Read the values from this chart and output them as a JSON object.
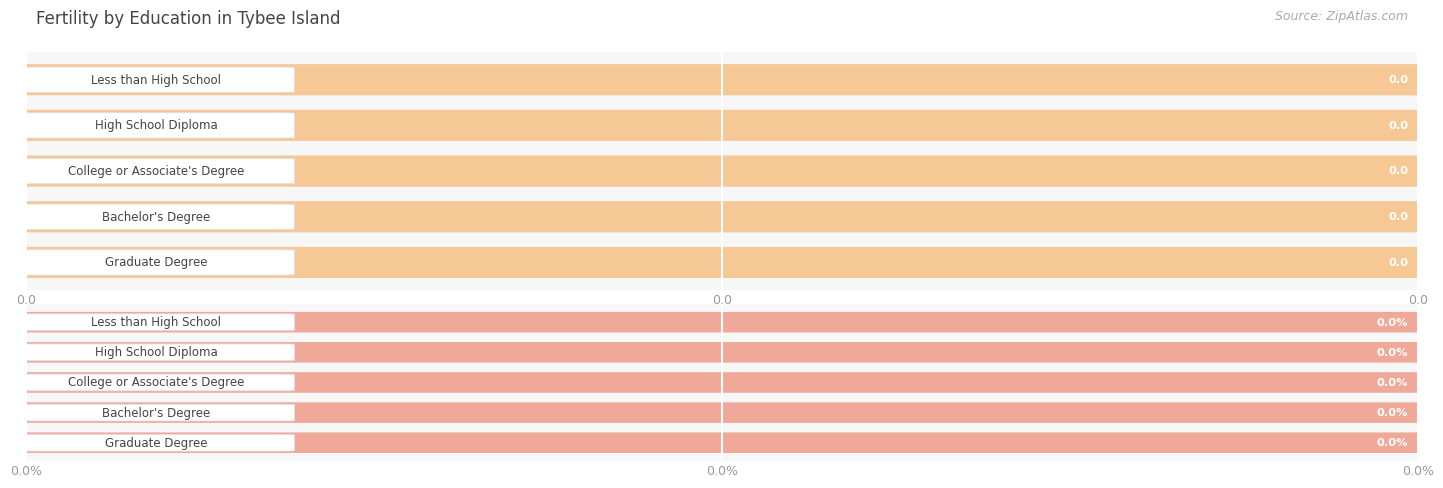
{
  "title": "Fertility by Education in Tybee Island",
  "source": "Source: ZipAtlas.com",
  "categories": [
    "Less than High School",
    "High School Diploma",
    "College or Associate's Degree",
    "Bachelor's Degree",
    "Graduate Degree"
  ],
  "values_top": [
    0.0,
    0.0,
    0.0,
    0.0,
    0.0
  ],
  "values_bottom": [
    0.0,
    0.0,
    0.0,
    0.0,
    0.0
  ],
  "bar_color_top": "#f5c896",
  "bar_color_bottom": "#f0a898",
  "bar_bg_color": "#e8e8e8",
  "tick_labels_top": [
    "0.0",
    "0.0",
    "0.0"
  ],
  "tick_labels_bottom": [
    "0.0%",
    "0.0%",
    "0.0%"
  ],
  "title_fontsize": 12,
  "bar_label_fontsize": 8.5,
  "tick_fontsize": 9,
  "source_fontsize": 9,
  "background_color": "#ffffff",
  "subplot_bg": "#f7f7f7",
  "grid_color": "#ffffff",
  "bar_height": 0.65,
  "pill_color": "#ffffff",
  "pill_edge_color": "#dddddd",
  "text_color": "#444444",
  "val_text_color": "#ffffff"
}
